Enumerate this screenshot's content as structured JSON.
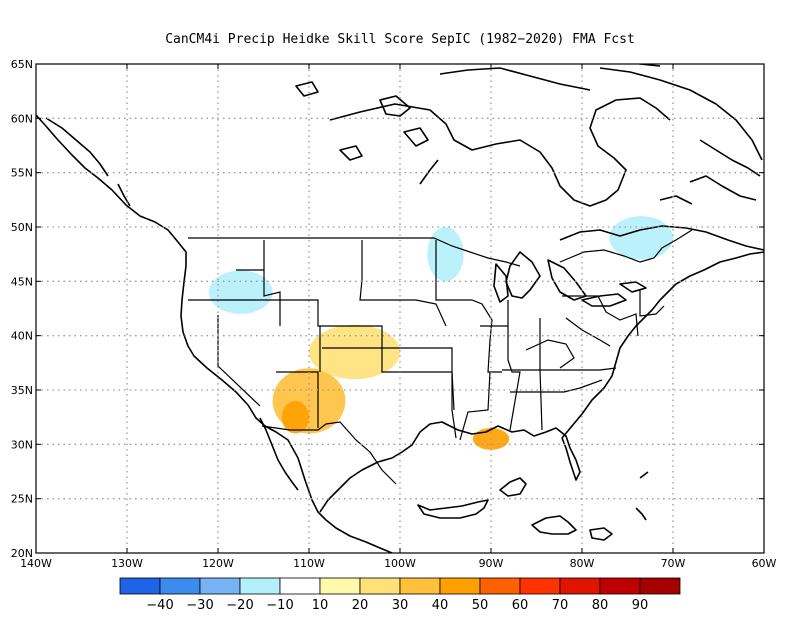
{
  "title": "CanCM4i Precip Heidke Skill Score SepIC (1982−2020) FMA Fcst",
  "lat_labels": [
    "65N",
    "60N",
    "55N",
    "50N",
    "45N",
    "40N",
    "35N",
    "30N",
    "25N",
    "20N"
  ],
  "lon_labels": [
    "140W",
    "130W",
    "120W",
    "110W",
    "100W",
    "90W",
    "80W",
    "70W",
    "60W"
  ],
  "colorbar": {
    "colors": [
      "#1e64e6",
      "#3c8cf0",
      "#78b4f5",
      "#b4f0fa",
      "#ffffff",
      "#fffaaa",
      "#ffe178",
      "#ffc03c",
      "#ffa000",
      "#ff6000",
      "#ff3200",
      "#e11400",
      "#c00000",
      "#a50000"
    ],
    "labels": [
      "−40",
      "−30",
      "−20",
      "−10",
      "10",
      "20",
      "30",
      "40",
      "50",
      "60",
      "70",
      "80",
      "90"
    ]
  },
  "chart_data": {
    "type": "heatmap",
    "title": "CanCM4i Precip Heidke Skill Score SepIC (1982−2020) FMA Fcst",
    "lat_range": [
      20,
      65
    ],
    "lon_range": [
      -140,
      -60
    ],
    "contour_levels": [
      -40,
      -30,
      -20,
      -10,
      10,
      20,
      30,
      40,
      50,
      60,
      70,
      80,
      90
    ],
    "regions": [
      {
        "area": "Arizona / New Mexico",
        "lon": [
          -114,
          -106
        ],
        "lat": [
          31,
          37
        ],
        "value": 35
      },
      {
        "area": "Southern Arizona",
        "lon": [
          -113,
          -110
        ],
        "lat": [
          31,
          34
        ],
        "value": 45
      },
      {
        "area": "Louisiana coast",
        "lon": [
          -92,
          -88
        ],
        "lat": [
          29.5,
          31.5
        ],
        "value": 45
      },
      {
        "area": "Colorado / Kansas",
        "lon": [
          -110,
          -100
        ],
        "lat": [
          36,
          41
        ],
        "value": 20
      },
      {
        "area": "Western Ontario",
        "lon": [
          -97,
          -93
        ],
        "lat": [
          45,
          50
        ],
        "value": -15
      },
      {
        "area": "Quebec",
        "lon": [
          -77,
          -70
        ],
        "lat": [
          47,
          51
        ],
        "value": -15
      },
      {
        "area": "Idaho / Oregon",
        "lon": [
          -121,
          -114
        ],
        "lat": [
          42,
          46
        ],
        "value": -20
      }
    ],
    "grid": true,
    "colorbar_position": "bottom"
  }
}
